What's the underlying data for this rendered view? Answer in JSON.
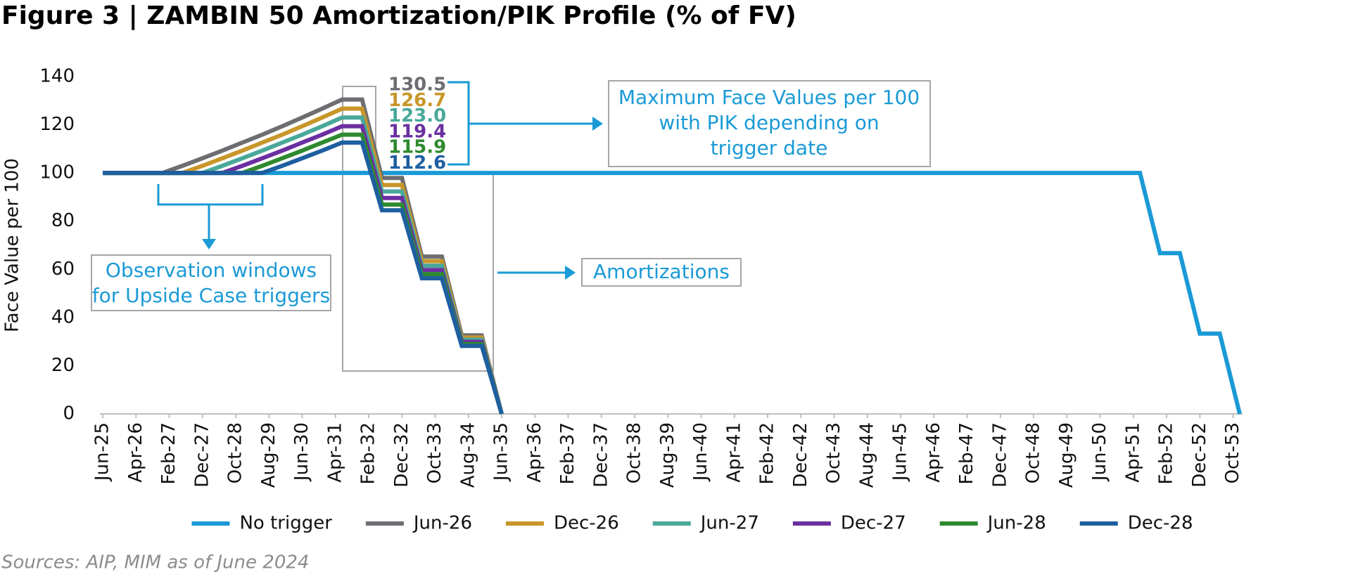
{
  "chart_data": {
    "type": "line",
    "title": "Figure 3  |  ZAMBIN 50 Amortization/PIK Profile (% of FV)",
    "y_label": "Face Value per 100",
    "source": "Sources: AIP, MIM as of June 2024",
    "ylim": [
      0,
      140
    ],
    "yticks": [
      0,
      20,
      40,
      60,
      80,
      100,
      120,
      140
    ],
    "xlim": [
      "Jun-25",
      "Dec-53"
    ],
    "xticks": [
      "Jun-25",
      "Apr-26",
      "Feb-27",
      "Dec-27",
      "Oct-28",
      "Aug-29",
      "Jun-30",
      "Apr-31",
      "Feb-32",
      "Dec-32",
      "Oct-33",
      "Aug-34",
      "Jun-35",
      "Apr-36",
      "Feb-37",
      "Dec-37",
      "Oct-38",
      "Aug-39",
      "Jun-40",
      "Apr-41",
      "Feb-42",
      "Dec-42",
      "Oct-43",
      "Aug-44",
      "Jun-45",
      "Apr-46",
      "Feb-47",
      "Dec-47",
      "Oct-48",
      "Aug-49",
      "Jun-50",
      "Apr-51",
      "Feb-52",
      "Dec-52",
      "Oct-53"
    ],
    "legend": "bottom",
    "series": [
      {
        "name": "No trigger",
        "color": "#1a9ad6",
        "x": [
          "Jun-25",
          "Jun-51",
          "Dec-51",
          "Jun-52",
          "Dec-52",
          "Jun-53",
          "Dec-53"
        ],
        "values": [
          100,
          100,
          66.7,
          66.7,
          33.3,
          33.3,
          0
        ]
      },
      {
        "name": "Jun-26",
        "color": "#6d6e71",
        "x": [
          "Jun-25",
          "Dec-25",
          "Jun-26",
          "Dec-26",
          "Jun-27",
          "Dec-27",
          "Jun-28",
          "Dec-28",
          "Jun-29",
          "Dec-29",
          "Jun-30",
          "Dec-30",
          "Jun-31",
          "Dec-31",
          "Jun-32",
          "Dec-32",
          "Jun-33",
          "Dec-33",
          "Jun-34",
          "Dec-34",
          "Jun-35"
        ],
        "values": [
          100,
          100,
          100,
          100,
          103.0,
          106.1,
          109.3,
          112.6,
          115.9,
          119.4,
          123.0,
          126.7,
          130.5,
          130.5,
          97.9,
          97.9,
          65.3,
          65.3,
          32.6,
          32.6,
          0
        ],
        "value_labels": [
          null,
          null,
          null,
          null,
          null,
          null,
          null,
          null,
          null,
          null,
          null,
          null,
          "130.5",
          null,
          null,
          null,
          null,
          null,
          null,
          null,
          null
        ]
      },
      {
        "name": "Dec-26",
        "color": "#c8962a",
        "x": [
          "Jun-25",
          "Dec-25",
          "Jun-26",
          "Dec-26",
          "Jun-27",
          "Dec-27",
          "Jun-28",
          "Dec-28",
          "Jun-29",
          "Dec-29",
          "Jun-30",
          "Dec-30",
          "Jun-31",
          "Dec-31",
          "Jun-32",
          "Dec-32",
          "Jun-33",
          "Dec-33",
          "Jun-34",
          "Dec-34",
          "Jun-35"
        ],
        "values": [
          100,
          100,
          100,
          100,
          100,
          103.0,
          106.1,
          109.3,
          112.6,
          115.9,
          119.4,
          123.0,
          126.7,
          126.7,
          95.0,
          95.0,
          63.4,
          63.4,
          31.7,
          31.7,
          0
        ],
        "value_labels": [
          null,
          null,
          null,
          null,
          null,
          null,
          null,
          null,
          null,
          null,
          null,
          null,
          "126.7",
          null,
          null,
          null,
          null,
          null,
          null,
          null,
          null
        ]
      },
      {
        "name": "Jun-27",
        "color": "#4aa89a",
        "x": [
          "Jun-25",
          "Dec-25",
          "Jun-26",
          "Dec-26",
          "Jun-27",
          "Dec-27",
          "Jun-28",
          "Dec-28",
          "Jun-29",
          "Dec-29",
          "Jun-30",
          "Dec-30",
          "Jun-31",
          "Dec-31",
          "Jun-32",
          "Dec-32",
          "Jun-33",
          "Dec-33",
          "Jun-34",
          "Dec-34",
          "Jun-35"
        ],
        "values": [
          100,
          100,
          100,
          100,
          100,
          100,
          103.0,
          106.1,
          109.3,
          112.6,
          115.9,
          119.4,
          123.0,
          123.0,
          92.3,
          92.3,
          61.5,
          61.5,
          30.8,
          30.8,
          0
        ],
        "value_labels": [
          null,
          null,
          null,
          null,
          null,
          null,
          null,
          null,
          null,
          null,
          null,
          null,
          "123.0",
          null,
          null,
          null,
          null,
          null,
          null,
          null,
          null
        ]
      },
      {
        "name": "Dec-27",
        "color": "#6b2fa0",
        "x": [
          "Jun-25",
          "Dec-25",
          "Jun-26",
          "Dec-26",
          "Jun-27",
          "Dec-27",
          "Jun-28",
          "Dec-28",
          "Jun-29",
          "Dec-29",
          "Jun-30",
          "Dec-30",
          "Jun-31",
          "Dec-31",
          "Jun-32",
          "Dec-32",
          "Jun-33",
          "Dec-33",
          "Jun-34",
          "Dec-34",
          "Jun-35"
        ],
        "values": [
          100,
          100,
          100,
          100,
          100,
          100,
          100,
          103.0,
          106.1,
          109.3,
          112.6,
          115.9,
          119.4,
          119.4,
          89.6,
          89.6,
          59.7,
          59.7,
          29.9,
          29.9,
          0
        ],
        "value_labels": [
          null,
          null,
          null,
          null,
          null,
          null,
          null,
          null,
          null,
          null,
          null,
          null,
          "119.4",
          null,
          null,
          null,
          null,
          null,
          null,
          null,
          null
        ]
      },
      {
        "name": "Jun-28",
        "color": "#2e8a2e",
        "x": [
          "Jun-25",
          "Dec-25",
          "Jun-26",
          "Dec-26",
          "Jun-27",
          "Dec-27",
          "Jun-28",
          "Dec-28",
          "Jun-29",
          "Dec-29",
          "Jun-30",
          "Dec-30",
          "Jun-31",
          "Dec-31",
          "Jun-32",
          "Dec-32",
          "Jun-33",
          "Dec-33",
          "Jun-34",
          "Dec-34",
          "Jun-35"
        ],
        "values": [
          100,
          100,
          100,
          100,
          100,
          100,
          100,
          100,
          103.0,
          106.1,
          109.3,
          112.6,
          115.9,
          115.9,
          86.9,
          86.9,
          58.0,
          58.0,
          29.0,
          29.0,
          0
        ],
        "value_labels": [
          null,
          null,
          null,
          null,
          null,
          null,
          null,
          null,
          null,
          null,
          null,
          null,
          "115.9",
          null,
          null,
          null,
          null,
          null,
          null,
          null,
          null
        ]
      },
      {
        "name": "Dec-28",
        "color": "#1e5fa0",
        "x": [
          "Jun-25",
          "Dec-25",
          "Jun-26",
          "Dec-26",
          "Jun-27",
          "Dec-27",
          "Jun-28",
          "Dec-28",
          "Jun-29",
          "Dec-29",
          "Jun-30",
          "Dec-30",
          "Jun-31",
          "Dec-31",
          "Jun-32",
          "Dec-32",
          "Jun-33",
          "Dec-33",
          "Jun-34",
          "Dec-34",
          "Jun-35"
        ],
        "values": [
          100,
          100,
          100,
          100,
          100,
          100,
          100,
          100,
          100,
          103.0,
          106.1,
          109.3,
          112.6,
          112.6,
          84.5,
          84.5,
          56.3,
          56.3,
          28.2,
          28.2,
          0
        ],
        "value_labels": [
          null,
          null,
          null,
          null,
          null,
          null,
          null,
          null,
          null,
          null,
          null,
          null,
          "112.6",
          null,
          null,
          null,
          null,
          null,
          null,
          null,
          null
        ]
      }
    ],
    "annotations": [
      {
        "lines": [
          "Maximum Face Values per 100",
          "with PIK depending on",
          "trigger date"
        ]
      },
      {
        "lines": [
          "Amortizations"
        ]
      },
      {
        "lines": [
          "Observation windows",
          "for Upside Case triggers"
        ]
      }
    ]
  }
}
